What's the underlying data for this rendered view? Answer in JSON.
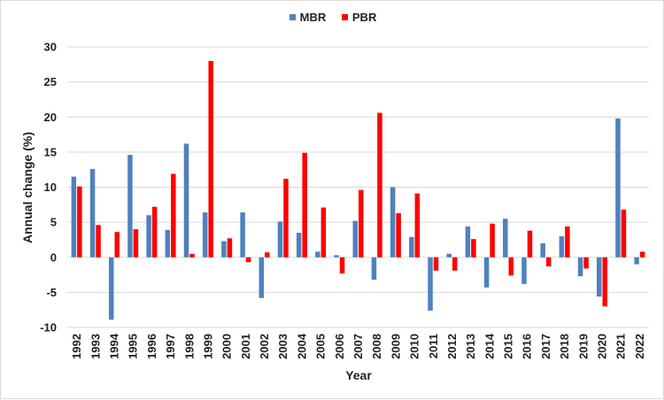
{
  "chart_data": {
    "type": "bar",
    "title": "",
    "xlabel": "Year",
    "ylabel": "Annual change (%)",
    "ylim": [
      -10,
      30
    ],
    "yticks": [
      -10,
      -5,
      0,
      5,
      10,
      15,
      20,
      25,
      30
    ],
    "grid": true,
    "legend_position": "top-center",
    "categories": [
      "1992",
      "1993",
      "1994",
      "1995",
      "1996",
      "1997",
      "1998",
      "1999",
      "2000",
      "2001",
      "2002",
      "2003",
      "2004",
      "2005",
      "2006",
      "2007",
      "2008",
      "2009",
      "2010",
      "2011",
      "2012",
      "2013",
      "2014",
      "2015",
      "2016",
      "2017",
      "2018",
      "2019",
      "2020",
      "2021",
      "2022"
    ],
    "series": [
      {
        "name": "MBR",
        "color": "#4f81bd",
        "values": [
          11.5,
          12.6,
          -8.9,
          14.6,
          6.0,
          3.9,
          16.2,
          6.4,
          2.3,
          6.4,
          -5.8,
          5.1,
          3.5,
          0.8,
          0.3,
          5.2,
          -3.2,
          10.0,
          2.9,
          -7.6,
          0.5,
          4.4,
          -4.3,
          5.5,
          -3.8,
          2.0,
          3.0,
          -2.7,
          -5.6,
          19.8,
          -1.0
        ]
      },
      {
        "name": "PBR",
        "color": "#ff0000",
        "values": [
          10.1,
          4.6,
          3.6,
          4.0,
          7.2,
          11.9,
          0.5,
          28.0,
          2.7,
          -0.7,
          0.7,
          11.2,
          14.9,
          7.1,
          -2.3,
          9.6,
          20.6,
          6.3,
          9.1,
          -1.9,
          -1.9,
          2.6,
          4.8,
          -2.6,
          3.8,
          -1.3,
          4.4,
          -1.6,
          -7.0,
          6.8,
          0.8
        ]
      }
    ]
  }
}
